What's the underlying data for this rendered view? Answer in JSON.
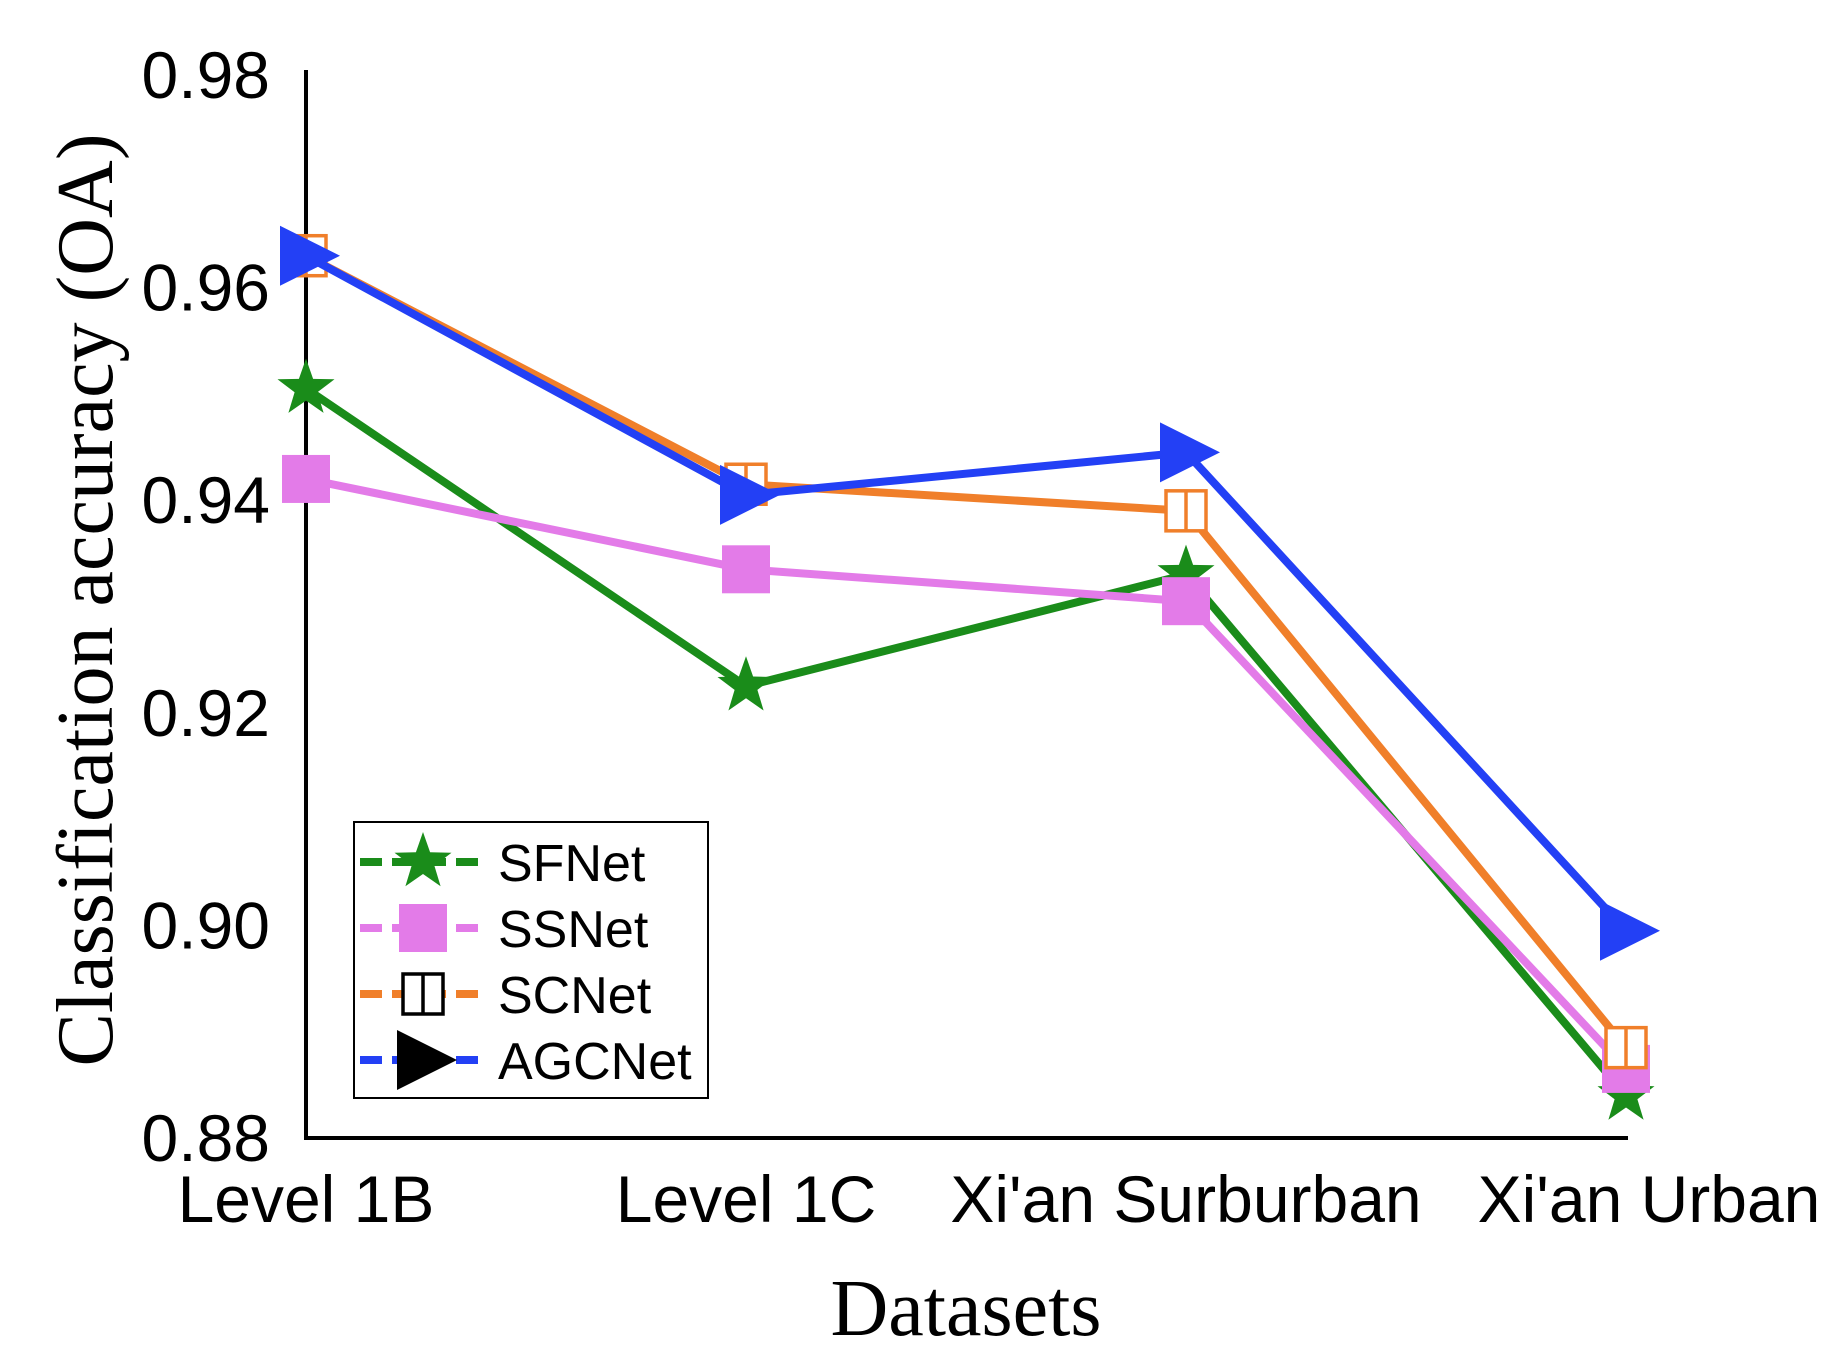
{
  "chart_data": {
    "type": "line",
    "title": "",
    "xlabel": "Datasets",
    "ylabel": "Classification accuracy (OA)",
    "categories": [
      "Level 1B",
      "Level 1C",
      "Xi'an Surburban",
      "Xi'an Urban"
    ],
    "ylim": [
      0.88,
      0.98
    ],
    "yticks": [
      0.98,
      0.96,
      0.94,
      0.92,
      0.9,
      0.88
    ],
    "ytick_labels": [
      "0.98",
      "0.96",
      "0.94",
      "0.92",
      "0.90",
      "0.88"
    ],
    "legend_position": "lower-left",
    "series": [
      {
        "name": "SFNet",
        "color": "#1a8c1a",
        "marker": "star",
        "values": [
          0.9505,
          0.9225,
          0.933,
          0.884
        ]
      },
      {
        "name": "SSNet",
        "color": "#e37be8",
        "marker": "filled-square",
        "values": [
          0.942,
          0.9335,
          0.9305,
          0.8865
        ]
      },
      {
        "name": "SCNet",
        "color": "#f07f2a",
        "marker": "open-square",
        "values": [
          0.963,
          0.9415,
          0.939,
          0.8885
        ]
      },
      {
        "name": "AGCNet",
        "color": "#2340f5",
        "marker": "triangle-right",
        "values": [
          0.963,
          0.9405,
          0.9445,
          0.8995
        ]
      }
    ]
  }
}
